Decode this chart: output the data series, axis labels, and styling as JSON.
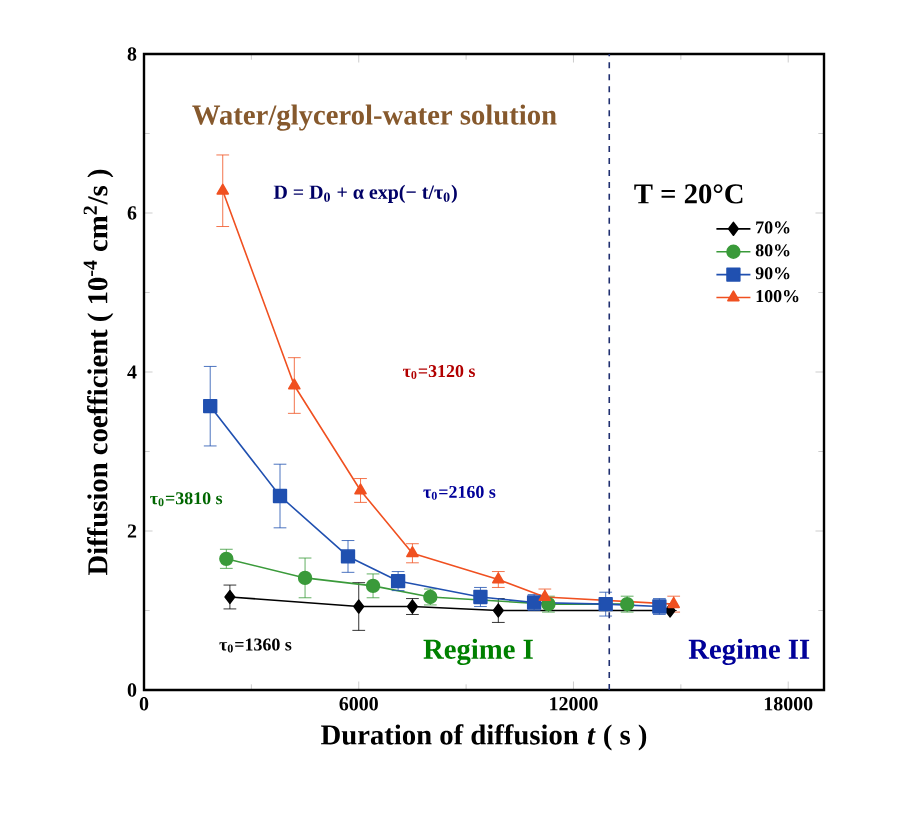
{
  "chart_data": {
    "type": "line",
    "xlabel": "Duration of diffusion $_{}$*t* ( s )",
    "ylabel": "Diffusion coefficient ( 10$^{-4}$ cm$^{2}$/s )",
    "xlim": [
      0,
      19000
    ],
    "ylim": [
      0,
      8
    ],
    "xticks": [
      0,
      6000,
      12000,
      18000
    ],
    "yticks": [
      0,
      2,
      4,
      6,
      8
    ],
    "legend": "right",
    "line_style": "solid",
    "series": [
      {
        "name": "70%",
        "color": "#000000",
        "marker": "diamond",
        "x": [
          2400,
          6000,
          7500,
          9900,
          14700
        ],
        "values": [
          1.17,
          1.05,
          1.05,
          1.0,
          1.0
        ],
        "errors": [
          0.15,
          0.3,
          0.1,
          0.15,
          null
        ]
      },
      {
        "name": "80%",
        "color": "#3a9a3a",
        "marker": "circle",
        "x": [
          2300,
          4500,
          6400,
          8000,
          11300,
          13500
        ],
        "values": [
          1.65,
          1.41,
          1.31,
          1.17,
          1.08,
          1.08
        ],
        "errors": [
          0.12,
          0.25,
          0.15,
          0.1,
          0.1,
          0.1
        ]
      },
      {
        "name": "90%",
        "color": "#2050b0",
        "marker": "square",
        "x": [
          1850,
          3800,
          5700,
          7100,
          9400,
          10900,
          12900,
          14400
        ],
        "values": [
          3.57,
          2.44,
          1.68,
          1.37,
          1.17,
          1.1,
          1.08,
          1.05
        ],
        "errors": [
          0.5,
          0.4,
          0.2,
          0.12,
          0.12,
          0.1,
          0.15,
          0.1
        ]
      },
      {
        "name": "100%",
        "color": "#f05020",
        "marker": "triangle",
        "x": [
          2200,
          4200,
          6050,
          7500,
          9900,
          11200,
          14800
        ],
        "values": [
          6.28,
          3.83,
          2.51,
          1.72,
          1.39,
          1.17,
          1.08
        ],
        "errors": [
          0.45,
          0.35,
          0.15,
          0.12,
          0.1,
          0.1,
          0.1
        ]
      }
    ],
    "ref_lines": [
      {
        "axis": "x",
        "value": 13000,
        "line_style": "dashed",
        "color": "#203070"
      }
    ],
    "annotations": [
      "Water/glycerol-water solution",
      "D = D$_{0}$ + α exp(− t/τ$_{0}$)",
      "T = 20°C",
      "τ$_{0}$=3120 s",
      "τ$_{0}$=3810 s",
      "τ$_{0}$=2160 s",
      "τ$_{0}$=1360 s",
      "Regime I",
      "Regime II"
    ]
  }
}
